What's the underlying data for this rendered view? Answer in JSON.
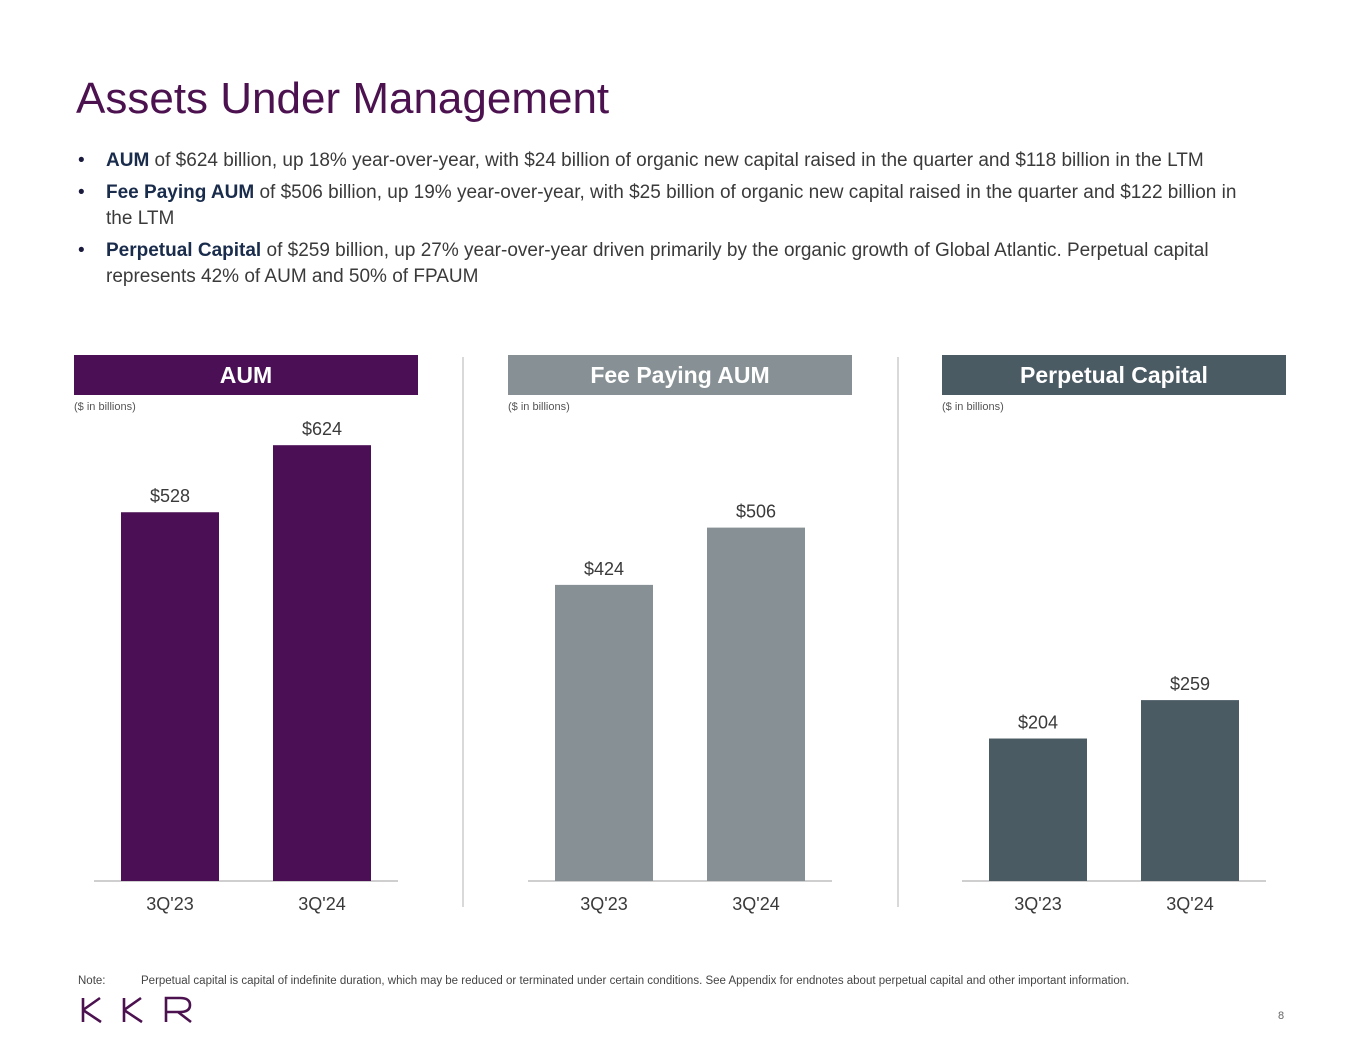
{
  "title": "Assets Under Management",
  "bullets": [
    {
      "term": "AUM",
      "text": " of $624 billion, up 18% year-over-year, with $24 billion of organic new capital raised in the quarter and $118 billion in the LTM"
    },
    {
      "term": "Fee Paying AUM",
      "text": " of $506 billion, up 19% year-over-year, with $25 billion of organic new capital raised in the quarter and $122 billion in the LTM"
    },
    {
      "term": "Perpetual Capital",
      "text": " of $259 billion, up 27% year-over-year driven primarily by the organic growth of Global Atlantic. Perpetual capital represents 42% of AUM and 50% of FPAUM"
    }
  ],
  "bullet_symbol": "•",
  "chart_data": [
    {
      "type": "bar",
      "title": "AUM",
      "units_note": "($ in billions)",
      "categories": [
        "3Q'23",
        "3Q'24"
      ],
      "values": [
        528,
        624
      ],
      "value_labels": [
        "$528",
        "$624"
      ],
      "color": "#4a0f54"
    },
    {
      "type": "bar",
      "title": "Fee Paying AUM",
      "units_note": "($ in billions)",
      "categories": [
        "3Q'23",
        "3Q'24"
      ],
      "values": [
        424,
        506
      ],
      "value_labels": [
        "$424",
        "$506"
      ],
      "color": "#879195"
    },
    {
      "type": "bar",
      "title": "Perpetual Capital",
      "units_note": "($ in billions)",
      "categories": [
        "3Q'23",
        "3Q'24"
      ],
      "values": [
        204,
        259
      ],
      "value_labels": [
        "$204",
        "$259"
      ],
      "color": "#4b5b64"
    }
  ],
  "note": {
    "label": "Note:",
    "text": "Perpetual capital is capital of indefinite duration, which may be reduced or terminated under certain conditions. See Appendix for endnotes about perpetual capital and other important information."
  },
  "logo": {
    "text": "KKR",
    "color": "#4c1250"
  },
  "page_number": "8"
}
